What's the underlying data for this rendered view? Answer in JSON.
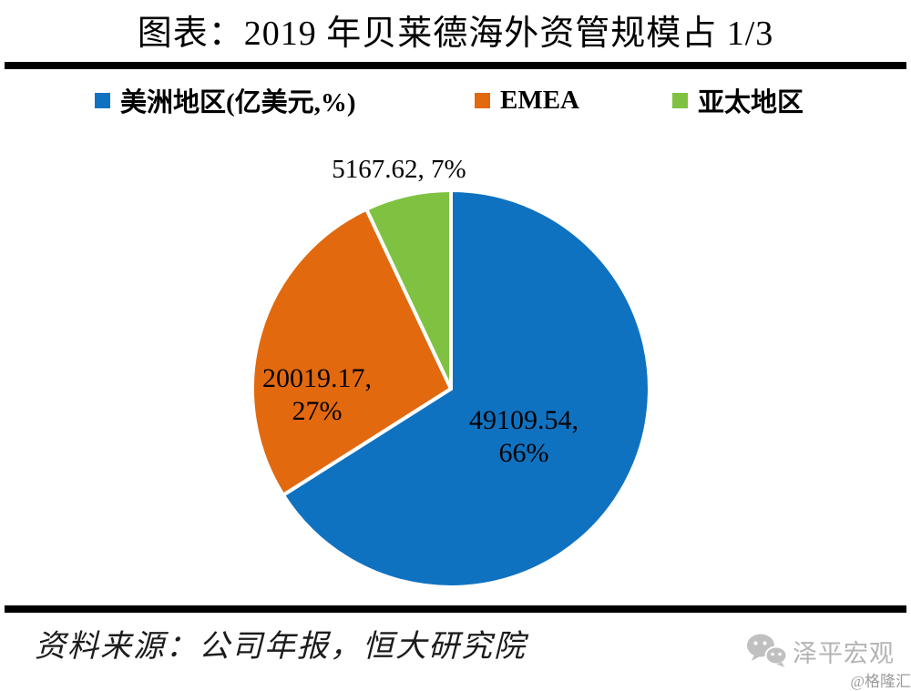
{
  "title": "图表：2019 年贝莱德海外资管规模占 1/3",
  "legend": [
    {
      "label": "美洲地区(亿美元,%)",
      "color": "#0F72C1"
    },
    {
      "label": "EMEA",
      "color": "#E2690E"
    },
    {
      "label": "亚太地区",
      "color": "#7FC241"
    }
  ],
  "chart_data": {
    "type": "pie",
    "title": "图表：2019 年贝莱德海外资管规模占 1/3",
    "unit": "亿美元",
    "start_angle_deg": 0,
    "direction": "clockwise",
    "legend_position": "top",
    "slice_border_color": "#ffffff",
    "slices": [
      {
        "key": "americas",
        "name": "美洲地区",
        "value": 49109.54,
        "percent": 66,
        "color": "#0F72C1",
        "label_line1": "49109.54,",
        "label_line2": "66%"
      },
      {
        "key": "emea",
        "name": "EMEA",
        "value": 20019.17,
        "percent": 27,
        "color": "#E2690E",
        "label_line1": "20019.17,",
        "label_line2": "27%"
      },
      {
        "key": "apac",
        "name": "亚太地区",
        "value": 5167.62,
        "percent": 7,
        "color": "#7FC241",
        "label_line1": "5167.62, 7%",
        "label_line2": ""
      }
    ]
  },
  "footer": {
    "source": "资料来源：公司年报，恒大研究院"
  },
  "watermark": {
    "brand": "泽平宏观",
    "credit": "@格隆汇"
  }
}
